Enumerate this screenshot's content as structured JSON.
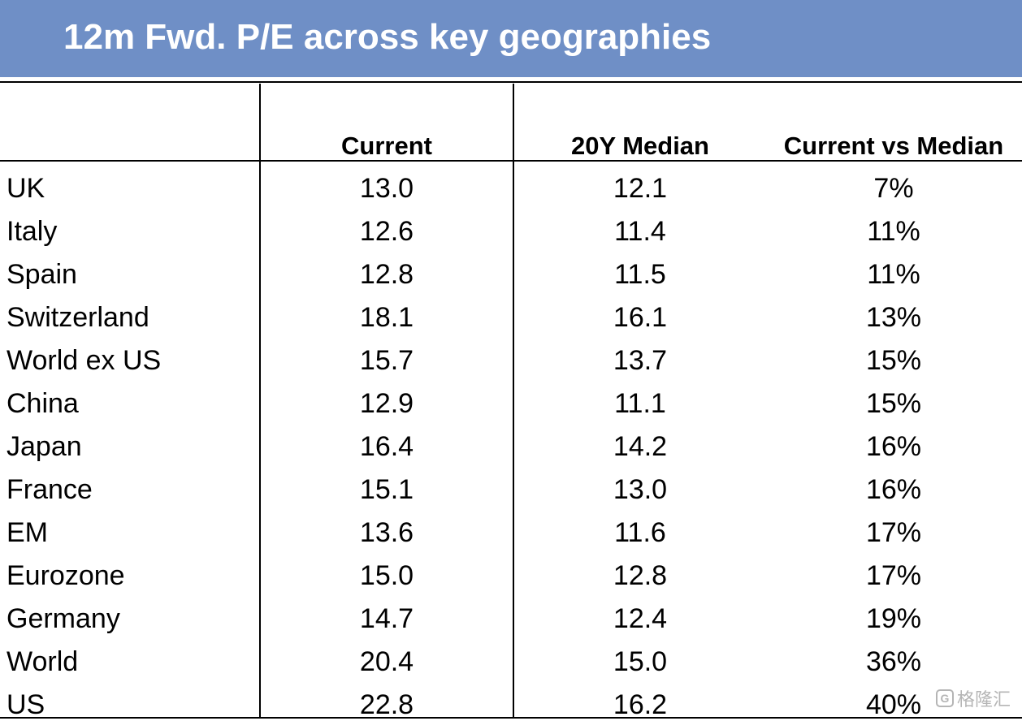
{
  "chart_data": {
    "type": "table",
    "title": "12m Fwd. P/E across key geographies",
    "columns": [
      "",
      "Current",
      "20Y Median",
      "Current vs Median"
    ],
    "rows": [
      {
        "geo": "UK",
        "current": "13.0",
        "median": "12.1",
        "diff": "7%"
      },
      {
        "geo": "Italy",
        "current": "12.6",
        "median": "11.4",
        "diff": "11%"
      },
      {
        "geo": "Spain",
        "current": "12.8",
        "median": "11.5",
        "diff": "11%"
      },
      {
        "geo": "Switzerland",
        "current": "18.1",
        "median": "16.1",
        "diff": "13%"
      },
      {
        "geo": "World ex US",
        "current": "15.7",
        "median": "13.7",
        "diff": "15%"
      },
      {
        "geo": "China",
        "current": "12.9",
        "median": "11.1",
        "diff": "15%"
      },
      {
        "geo": "Japan",
        "current": "16.4",
        "median": "14.2",
        "diff": "16%"
      },
      {
        "geo": "France",
        "current": "15.1",
        "median": "13.0",
        "diff": "16%"
      },
      {
        "geo": "EM",
        "current": "13.6",
        "median": "11.6",
        "diff": "17%"
      },
      {
        "geo": "Eurozone",
        "current": "15.0",
        "median": "12.8",
        "diff": "17%"
      },
      {
        "geo": "Germany",
        "current": "14.7",
        "median": "12.4",
        "diff": "19%"
      },
      {
        "geo": "World",
        "current": "20.4",
        "median": "15.0",
        "diff": "36%"
      },
      {
        "geo": "US",
        "current": "22.8",
        "median": "16.2",
        "diff": "40%"
      }
    ]
  },
  "colors": {
    "title_bar": "#6f8fc6",
    "title_text": "#ffffff",
    "lines": "#000000"
  },
  "watermark": {
    "icon": "gelonghui-logo-icon",
    "text": "格隆汇"
  }
}
